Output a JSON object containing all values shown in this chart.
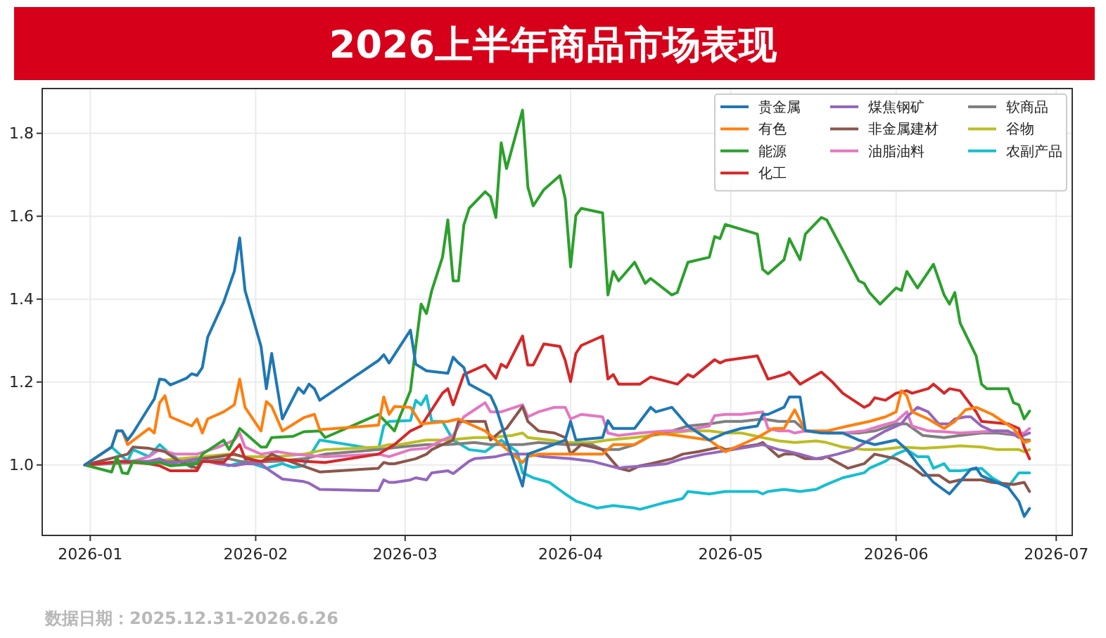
{
  "chart_data": {
    "type": "line",
    "title": "2026上半年商品市场表现",
    "annotations": [
      "数据日期：2025.12.31-2026.6.26"
    ],
    "xlim": [
      "2025-12-23",
      "2026-07-04"
    ],
    "ylim": [
      0.83,
      1.908
    ],
    "xticks": [
      {
        "value": "2026-01",
        "label": "2026-01"
      },
      {
        "value": "2026-02",
        "label": "2026-02"
      },
      {
        "value": "2026-03",
        "label": "2026-03"
      },
      {
        "value": "2026-04",
        "label": "2026-04"
      },
      {
        "value": "2026-05",
        "label": "2026-05"
      },
      {
        "value": "2026-06",
        "label": "2026-06"
      },
      {
        "value": "2026-07",
        "label": "2026-07"
      }
    ],
    "yticks": [
      {
        "value": 1,
        "label": "1.0"
      },
      {
        "value": 1.2,
        "label": "1.2"
      },
      {
        "value": 1.4,
        "label": "1.4"
      },
      {
        "value": 1.6,
        "label": "1.6"
      },
      {
        "value": 1.8,
        "label": "1.8"
      }
    ],
    "grid": true,
    "legend": "top right",
    "series": [
      {
        "name": "贵金属",
        "color": "#1f77b4",
        "x": [
          "2025-12-31",
          "2026-01-05",
          "2026-01-06",
          "2026-01-07",
          "2026-01-08",
          "2026-01-09",
          "2026-01-12",
          "2026-01-13",
          "2026-01-14",
          "2026-01-15",
          "2026-01-16",
          "2026-01-19",
          "2026-01-20",
          "2026-01-21",
          "2026-01-22",
          "2026-01-23",
          "2026-01-26",
          "2026-01-28",
          "2026-01-29",
          "2026-01-30",
          "2026-02-02",
          "2026-02-03",
          "2026-02-04",
          "2026-02-06",
          "2026-02-09",
          "2026-02-10",
          "2026-02-11",
          "2026-02-12",
          "2026-02-13",
          "2026-02-24",
          "2026-02-25",
          "2026-02-26",
          "2026-03-02",
          "2026-03-03",
          "2026-03-05",
          "2026-03-09",
          "2026-03-10",
          "2026-03-11",
          "2026-03-12",
          "2026-03-13",
          "2026-03-17",
          "2026-03-18",
          "2026-03-20",
          "2026-03-23",
          "2026-03-24",
          "2026-03-27",
          "2026-03-31",
          "2026-04-01",
          "2026-04-02",
          "2026-04-07",
          "2026-04-08",
          "2026-04-09",
          "2026-04-13",
          "2026-04-16",
          "2026-04-17",
          "2026-04-20",
          "2026-04-23",
          "2026-04-27",
          "2026-04-30",
          "2026-05-03",
          "2026-05-06",
          "2026-05-07",
          "2026-05-08",
          "2026-05-11",
          "2026-05-12",
          "2026-05-14",
          "2026-05-15",
          "2026-05-18",
          "2026-05-22",
          "2026-05-25",
          "2026-05-28",
          "2026-06-01",
          "2026-06-03",
          "2026-06-05",
          "2026-06-08",
          "2026-06-11",
          "2026-06-15",
          "2026-06-16",
          "2026-06-17",
          "2026-06-22",
          "2026-06-24",
          "2026-06-25",
          "2026-06-26"
        ],
        "values": [
          1,
          1.043,
          1.082,
          1.082,
          1.06,
          1.077,
          1.139,
          1.159,
          1.207,
          1.205,
          1.193,
          1.209,
          1.22,
          1.216,
          1.235,
          1.308,
          1.393,
          1.467,
          1.548,
          1.421,
          1.286,
          1.184,
          1.269,
          1.111,
          1.186,
          1.173,
          1.195,
          1.184,
          1.156,
          1.252,
          1.266,
          1.246,
          1.325,
          1.243,
          1.227,
          1.221,
          1.26,
          1.246,
          1.235,
          1.195,
          1.167,
          1.139,
          1.06,
          0.949,
          1.026,
          1.04,
          1.06,
          1.105,
          1.06,
          1.066,
          1.107,
          1.088,
          1.088,
          1.139,
          1.128,
          1.139,
          1.094,
          1.06,
          1.077,
          1.088,
          1.094,
          1.122,
          1.122,
          1.139,
          1.164,
          1.164,
          1.083,
          1.077,
          1.077,
          1.06,
          1.049,
          1.06,
          1.037,
          1.003,
          0.958,
          0.93,
          0.99,
          0.993,
          0.974,
          0.946,
          0.912,
          0.876,
          0.895
        ]
      },
      {
        "name": "有色",
        "color": "#ff7f0e",
        "x": [
          "2025-12-31",
          "2026-01-05",
          "2026-01-06",
          "2026-01-07",
          "2026-01-08",
          "2026-01-12",
          "2026-01-13",
          "2026-01-14",
          "2026-01-15",
          "2026-01-16",
          "2026-01-20",
          "2026-01-21",
          "2026-01-22",
          "2026-01-23",
          "2026-01-26",
          "2026-01-28",
          "2026-01-29",
          "2026-01-30",
          "2026-02-02",
          "2026-02-03",
          "2026-02-04",
          "2026-02-06",
          "2026-02-10",
          "2026-02-12",
          "2026-02-13",
          "2026-02-24",
          "2026-02-25",
          "2026-02-26",
          "2026-02-27",
          "2026-03-02",
          "2026-03-04",
          "2026-03-09",
          "2026-03-11",
          "2026-03-13",
          "2026-03-16",
          "2026-03-19",
          "2026-03-23",
          "2026-03-24",
          "2026-03-26",
          "2026-03-31",
          "2026-04-07",
          "2026-04-09",
          "2026-04-13",
          "2026-04-17",
          "2026-04-21",
          "2026-04-27",
          "2026-04-30",
          "2026-05-03",
          "2026-05-06",
          "2026-05-09",
          "2026-05-11",
          "2026-05-13",
          "2026-05-15",
          "2026-05-19",
          "2026-05-23",
          "2026-05-27",
          "2026-05-30",
          "2026-06-01",
          "2026-06-02",
          "2026-06-03",
          "2026-06-04",
          "2026-06-07",
          "2026-06-10",
          "2026-06-12",
          "2026-06-14",
          "2026-06-16",
          "2026-06-19",
          "2026-06-23",
          "2026-06-25",
          "2026-06-26"
        ],
        "values": [
          1,
          1.043,
          1.082,
          1.082,
          1.049,
          1.088,
          1.077,
          1.15,
          1.167,
          1.116,
          1.094,
          1.111,
          1.077,
          1.111,
          1.128,
          1.145,
          1.207,
          1.139,
          1.082,
          1.153,
          1.141,
          1.082,
          1.114,
          1.122,
          1.085,
          1.096,
          1.164,
          1.122,
          1.141,
          1.139,
          1.099,
          1.105,
          1.111,
          1.099,
          1.082,
          1.049,
          1.006,
          1.02,
          1.026,
          1.026,
          1.026,
          1.049,
          1.049,
          1.077,
          1.071,
          1.06,
          1.032,
          1.049,
          1.066,
          1.088,
          1.088,
          1.133,
          1.082,
          1.082,
          1.094,
          1.105,
          1.116,
          1.128,
          1.179,
          1.167,
          1.128,
          1.111,
          1.088,
          1.105,
          1.133,
          1.139,
          1.122,
          1.088,
          1.054,
          1.058
        ]
      },
      {
        "name": "能源",
        "color": "#2ca02c",
        "x": [
          "2025-12-31",
          "2026-01-05",
          "2026-01-06",
          "2026-01-07",
          "2026-01-08",
          "2026-01-09",
          "2026-01-12",
          "2026-01-14",
          "2026-01-16",
          "2026-01-21",
          "2026-01-22",
          "2026-01-26",
          "2026-01-27",
          "2026-01-29",
          "2026-02-02",
          "2026-02-03",
          "2026-02-04",
          "2026-02-08",
          "2026-02-10",
          "2026-02-13",
          "2026-02-14",
          "2026-02-24",
          "2026-02-26",
          "2026-02-27",
          "2026-02-28",
          "2026-03-02",
          "2026-03-03",
          "2026-03-04",
          "2026-03-05",
          "2026-03-06",
          "2026-03-08",
          "2026-03-09",
          "2026-03-10",
          "2026-03-11",
          "2026-03-12",
          "2026-03-13",
          "2026-03-16",
          "2026-03-17",
          "2026-03-18",
          "2026-03-19",
          "2026-03-20",
          "2026-03-23",
          "2026-03-24",
          "2026-03-25",
          "2026-03-27",
          "2026-03-30",
          "2026-03-31",
          "2026-04-01",
          "2026-04-02",
          "2026-04-03",
          "2026-04-07",
          "2026-04-08",
          "2026-04-09",
          "2026-04-10",
          "2026-04-13",
          "2026-04-15",
          "2026-04-16",
          "2026-04-20",
          "2026-04-21",
          "2026-04-23",
          "2026-04-27",
          "2026-04-28",
          "2026-04-29",
          "2026-04-30",
          "2026-05-06",
          "2026-05-07",
          "2026-05-08",
          "2026-05-11",
          "2026-05-12",
          "2026-05-14",
          "2026-05-15",
          "2026-05-18",
          "2026-05-19",
          "2026-05-22",
          "2026-05-25",
          "2026-05-26",
          "2026-05-27",
          "2026-05-29",
          "2026-06-01",
          "2026-06-02",
          "2026-06-03",
          "2026-06-05",
          "2026-06-08",
          "2026-06-10",
          "2026-06-11",
          "2026-06-12",
          "2026-06-13",
          "2026-06-16",
          "2026-06-17",
          "2026-06-18",
          "2026-06-22",
          "2026-06-23",
          "2026-06-24",
          "2026-06-25",
          "2026-06-26"
        ],
        "values": [
          1,
          0.983,
          1.02,
          0.981,
          0.979,
          1.009,
          1.003,
          1.006,
          0.998,
          1.003,
          1.026,
          1.06,
          1.037,
          1.088,
          1.043,
          1.043,
          1.066,
          1.069,
          1.08,
          1.082,
          1.066,
          1.122,
          1.096,
          1.082,
          1.116,
          1.179,
          1.286,
          1.388,
          1.365,
          1.421,
          1.501,
          1.591,
          1.444,
          1.444,
          1.579,
          1.619,
          1.659,
          1.647,
          1.597,
          1.777,
          1.715,
          1.856,
          1.67,
          1.625,
          1.664,
          1.698,
          1.642,
          1.478,
          1.602,
          1.619,
          1.608,
          1.41,
          1.467,
          1.444,
          1.489,
          1.438,
          1.45,
          1.41,
          1.416,
          1.489,
          1.501,
          1.551,
          1.546,
          1.58,
          1.557,
          1.472,
          1.461,
          1.495,
          1.546,
          1.495,
          1.557,
          1.597,
          1.591,
          1.518,
          1.444,
          1.438,
          1.416,
          1.388,
          1.427,
          1.421,
          1.467,
          1.427,
          1.484,
          1.41,
          1.388,
          1.416,
          1.342,
          1.263,
          1.195,
          1.184,
          1.184,
          1.15,
          1.145,
          1.111,
          1.13
        ]
      },
      {
        "name": "化工",
        "color": "#d62728",
        "x": [
          "2025-12-31",
          "2026-01-07",
          "2026-01-12",
          "2026-01-14",
          "2026-01-16",
          "2026-01-19",
          "2026-01-21",
          "2026-01-22",
          "2026-01-26",
          "2026-01-27",
          "2026-01-29",
          "2026-01-30",
          "2026-02-02",
          "2026-02-04",
          "2026-02-10",
          "2026-02-14",
          "2026-02-24",
          "2026-02-27",
          "2026-03-02",
          "2026-03-04",
          "2026-03-08",
          "2026-03-09",
          "2026-03-10",
          "2026-03-12",
          "2026-03-16",
          "2026-03-18",
          "2026-03-19",
          "2026-03-20",
          "2026-03-23",
          "2026-03-24",
          "2026-03-25",
          "2026-03-27",
          "2026-03-30",
          "2026-03-31",
          "2026-04-01",
          "2026-04-02",
          "2026-04-03",
          "2026-04-07",
          "2026-04-08",
          "2026-04-09",
          "2026-04-10",
          "2026-04-14",
          "2026-04-16",
          "2026-04-21",
          "2026-04-23",
          "2026-04-24",
          "2026-04-28",
          "2026-04-29",
          "2026-04-30",
          "2026-05-06",
          "2026-05-08",
          "2026-05-11",
          "2026-05-12",
          "2026-05-14",
          "2026-05-18",
          "2026-05-20",
          "2026-05-22",
          "2026-05-26",
          "2026-05-27",
          "2026-05-28",
          "2026-05-30",
          "2026-06-01",
          "2026-06-03",
          "2026-06-04",
          "2026-06-07",
          "2026-06-08",
          "2026-06-10",
          "2026-06-11",
          "2026-06-13",
          "2026-06-16",
          "2026-06-17",
          "2026-06-22",
          "2026-06-24",
          "2026-06-25",
          "2026-06-26"
        ],
        "values": [
          1,
          1.009,
          1.003,
          0.998,
          0.986,
          0.986,
          0.986,
          1.009,
          1.006,
          1.02,
          1.049,
          1.015,
          1.009,
          1.015,
          1.009,
          1.006,
          1.026,
          1.049,
          1.082,
          1.094,
          1.173,
          1.184,
          1.145,
          1.218,
          1.241,
          1.209,
          1.243,
          1.235,
          1.311,
          1.241,
          1.241,
          1.292,
          1.286,
          1.252,
          1.201,
          1.269,
          1.288,
          1.311,
          1.207,
          1.218,
          1.195,
          1.195,
          1.212,
          1.195,
          1.218,
          1.212,
          1.254,
          1.246,
          1.252,
          1.263,
          1.207,
          1.218,
          1.224,
          1.195,
          1.224,
          1.201,
          1.173,
          1.139,
          1.145,
          1.162,
          1.156,
          1.173,
          1.179,
          1.173,
          1.184,
          1.195,
          1.173,
          1.184,
          1.179,
          1.128,
          1.105,
          1.099,
          1.088,
          1.043,
          1.015
        ]
      },
      {
        "name": "煤焦钢矿",
        "color": "#9467bd",
        "x": [
          "2025-12-31",
          "2026-01-08",
          "2026-01-12",
          "2026-01-14",
          "2026-01-16",
          "2026-01-21",
          "2026-01-25",
          "2026-01-28",
          "2026-01-30",
          "2026-02-02",
          "2026-02-03",
          "2026-02-06",
          "2026-02-10",
          "2026-02-11",
          "2026-02-13",
          "2026-02-24",
          "2026-02-25",
          "2026-02-26",
          "2026-02-27",
          "2026-03-02",
          "2026-03-03",
          "2026-03-05",
          "2026-03-06",
          "2026-03-09",
          "2026-03-10",
          "2026-03-13",
          "2026-03-14",
          "2026-03-18",
          "2026-03-20",
          "2026-03-24",
          "2026-03-27",
          "2026-04-01",
          "2026-04-05",
          "2026-04-10",
          "2026-04-11",
          "2026-04-15",
          "2026-04-19",
          "2026-04-22",
          "2026-04-26",
          "2026-04-29",
          "2026-05-07",
          "2026-05-10",
          "2026-05-12",
          "2026-05-14",
          "2026-05-17",
          "2026-05-19",
          "2026-05-21",
          "2026-05-24",
          "2026-05-27",
          "2026-05-30",
          "2026-06-02",
          "2026-06-03",
          "2026-06-05",
          "2026-06-07",
          "2026-06-09",
          "2026-06-11",
          "2026-06-12",
          "2026-06-14",
          "2026-06-15",
          "2026-06-17",
          "2026-06-19",
          "2026-06-22",
          "2026-06-24",
          "2026-06-26"
        ],
        "values": [
          1,
          1.009,
          1.009,
          1.015,
          1.003,
          1.015,
          1.003,
          0.998,
          1.003,
          1.003,
          0.992,
          0.966,
          0.96,
          0.956,
          0.941,
          0.938,
          0.964,
          0.958,
          0.958,
          0.964,
          0.969,
          0.964,
          0.981,
          0.986,
          0.979,
          1.009,
          1.015,
          1.02,
          1.026,
          1.026,
          1.02,
          1.015,
          1.009,
          0.992,
          0.994,
          0.998,
          1.003,
          1.015,
          1.026,
          1.032,
          1.049,
          1.037,
          1.032,
          1.026,
          1.015,
          1.02,
          1.026,
          1.037,
          1.06,
          1.082,
          1.099,
          1.116,
          1.139,
          1.128,
          1.099,
          1.099,
          1.111,
          1.116,
          1.116,
          1.094,
          1.082,
          1.082,
          1.066,
          1.077
        ]
      },
      {
        "name": "非金属建材",
        "color": "#8c564b",
        "x": [
          "2025-12-31",
          "2026-01-08",
          "2026-01-09",
          "2026-01-12",
          "2026-01-15",
          "2026-01-18",
          "2026-01-21",
          "2026-01-22",
          "2026-01-25",
          "2026-01-28",
          "2026-01-31",
          "2026-02-02",
          "2026-02-04",
          "2026-02-06",
          "2026-02-13",
          "2026-02-24",
          "2026-02-25",
          "2026-02-26",
          "2026-02-27",
          "2026-03-03",
          "2026-03-05",
          "2026-03-06",
          "2026-03-08",
          "2026-03-10",
          "2026-03-11",
          "2026-03-16",
          "2026-03-17",
          "2026-03-19",
          "2026-03-20",
          "2026-03-23",
          "2026-03-24",
          "2026-03-26",
          "2026-03-29",
          "2026-03-31",
          "2026-04-01",
          "2026-04-03",
          "2026-04-07",
          "2026-04-10",
          "2026-04-12",
          "2026-04-14",
          "2026-04-16",
          "2026-04-20",
          "2026-04-22",
          "2026-04-25",
          "2026-04-29",
          "2026-04-30",
          "2026-05-06",
          "2026-05-07",
          "2026-05-10",
          "2026-05-11",
          "2026-05-13",
          "2026-05-15",
          "2026-05-18",
          "2026-05-19",
          "2026-05-23",
          "2026-05-26",
          "2026-05-28",
          "2026-06-01",
          "2026-06-04",
          "2026-06-06",
          "2026-06-09",
          "2026-06-11",
          "2026-06-13",
          "2026-06-17",
          "2026-06-19",
          "2026-06-23",
          "2026-06-25",
          "2026-06-26"
        ],
        "values": [
          1,
          1.026,
          1.043,
          1.04,
          1.032,
          1.006,
          0.992,
          1.015,
          1.02,
          1.026,
          1.015,
          1.006,
          1.026,
          1.015,
          0.983,
          0.992,
          1.006,
          1.003,
          1.003,
          1.015,
          1.026,
          1.037,
          1.049,
          1.06,
          1.105,
          1.105,
          1.06,
          1.082,
          1.088,
          1.141,
          1.105,
          1.082,
          1.077,
          1.066,
          1.026,
          1.049,
          1.037,
          0.992,
          0.986,
          0.998,
          1.003,
          1.015,
          1.026,
          1.032,
          1.043,
          1.037,
          1.049,
          1.054,
          1.02,
          1.026,
          1.026,
          1.015,
          1.015,
          1.02,
          0.992,
          1.003,
          1.026,
          1.015,
          0.994,
          0.975,
          0.975,
          0.958,
          0.964,
          0.964,
          0.958,
          0.953,
          0.958,
          0.936
        ]
      },
      {
        "name": "油脂油料",
        "color": "#e377c2",
        "x": [
          "2025-12-31",
          "2026-01-09",
          "2026-01-12",
          "2026-01-14",
          "2026-01-17",
          "2026-01-21",
          "2026-01-25",
          "2026-01-28",
          "2026-01-29",
          "2026-01-30",
          "2026-02-02",
          "2026-02-05",
          "2026-02-08",
          "2026-02-14",
          "2026-02-24",
          "2026-02-26",
          "2026-03-02",
          "2026-03-05",
          "2026-03-08",
          "2026-03-10",
          "2026-03-12",
          "2026-03-14",
          "2026-03-16",
          "2026-03-17",
          "2026-03-19",
          "2026-03-23",
          "2026-03-24",
          "2026-03-26",
          "2026-03-29",
          "2026-03-31",
          "2026-04-01",
          "2026-04-03",
          "2026-04-07",
          "2026-04-08",
          "2026-04-10",
          "2026-04-14",
          "2026-04-19",
          "2026-04-22",
          "2026-04-27",
          "2026-04-28",
          "2026-04-30",
          "2026-05-03",
          "2026-05-07",
          "2026-05-08",
          "2026-05-10",
          "2026-05-12",
          "2026-05-13",
          "2026-05-15",
          "2026-05-19",
          "2026-05-22",
          "2026-05-26",
          "2026-05-29",
          "2026-06-01",
          "2026-06-03",
          "2026-06-04",
          "2026-06-07",
          "2026-06-10",
          "2026-06-13",
          "2026-06-17",
          "2026-06-20",
          "2026-06-23",
          "2026-06-25",
          "2026-06-26"
        ],
        "values": [
          1,
          1.009,
          1.02,
          1.037,
          1.026,
          1.026,
          1.043,
          1.06,
          1.077,
          1.043,
          1.026,
          1.032,
          1.026,
          1.02,
          1.026,
          1.02,
          1.037,
          1.04,
          1.06,
          1.071,
          1.116,
          1.133,
          1.15,
          1.128,
          1.128,
          1.145,
          1.116,
          1.128,
          1.139,
          1.139,
          1.111,
          1.122,
          1.116,
          1.077,
          1.071,
          1.077,
          1.082,
          1.082,
          1.094,
          1.119,
          1.122,
          1.122,
          1.128,
          1.088,
          1.082,
          1.082,
          1.077,
          1.082,
          1.077,
          1.077,
          1.082,
          1.094,
          1.105,
          1.128,
          1.094,
          1.082,
          1.08,
          1.077,
          1.08,
          1.082,
          1.077,
          1.077,
          1.088
        ]
      },
      {
        "name": "软商品",
        "color": "#7f7f7f",
        "x": [
          "2025-12-31",
          "2026-01-09",
          "2026-01-18",
          "2026-01-21",
          "2026-01-27",
          "2026-01-30",
          "2026-02-05",
          "2026-02-10",
          "2026-02-14",
          "2026-02-24",
          "2026-02-26",
          "2026-02-28",
          "2026-03-05",
          "2026-03-09",
          "2026-03-14",
          "2026-03-17",
          "2026-03-23",
          "2026-03-26",
          "2026-03-31",
          "2026-04-05",
          "2026-04-07",
          "2026-04-10",
          "2026-04-13",
          "2026-04-16",
          "2026-04-20",
          "2026-04-23",
          "2026-04-27",
          "2026-04-30",
          "2026-05-03",
          "2026-05-07",
          "2026-05-10",
          "2026-05-13",
          "2026-05-15",
          "2026-05-19",
          "2026-05-25",
          "2026-05-28",
          "2026-06-01",
          "2026-06-03",
          "2026-06-06",
          "2026-06-10",
          "2026-06-13",
          "2026-06-17",
          "2026-06-20",
          "2026-06-24",
          "2026-06-25",
          "2026-06-26"
        ],
        "values": [
          1,
          1.006,
          1.009,
          1.006,
          1.015,
          1.006,
          1.009,
          1.015,
          1.026,
          1.037,
          1.04,
          1.043,
          1.049,
          1.049,
          1.054,
          1.049,
          1.049,
          1.054,
          1.049,
          1.049,
          1.037,
          1.037,
          1.049,
          1.071,
          1.082,
          1.094,
          1.099,
          1.105,
          1.105,
          1.111,
          1.105,
          1.105,
          1.082,
          1.077,
          1.077,
          1.082,
          1.099,
          1.099,
          1.071,
          1.066,
          1.071,
          1.077,
          1.077,
          1.071,
          1.06,
          1.06
        ]
      },
      {
        "name": "谷物",
        "color": "#bcbd22",
        "x": [
          "2025-12-31",
          "2026-01-09",
          "2026-01-18",
          "2026-01-22",
          "2026-01-27",
          "2026-01-30",
          "2026-02-05",
          "2026-02-10",
          "2026-02-14",
          "2026-02-24",
          "2026-02-26",
          "2026-02-28",
          "2026-03-05",
          "2026-03-09",
          "2026-03-14",
          "2026-03-17",
          "2026-03-21",
          "2026-03-23",
          "2026-03-24",
          "2026-03-28",
          "2026-03-31",
          "2026-04-05",
          "2026-04-08",
          "2026-04-13",
          "2026-04-16",
          "2026-04-20",
          "2026-04-23",
          "2026-04-27",
          "2026-04-30",
          "2026-05-03",
          "2026-05-07",
          "2026-05-10",
          "2026-05-13",
          "2026-05-17",
          "2026-05-19",
          "2026-05-22",
          "2026-05-26",
          "2026-05-29",
          "2026-06-02",
          "2026-06-06",
          "2026-06-10",
          "2026-06-13",
          "2026-06-17",
          "2026-06-20",
          "2026-06-24",
          "2026-06-25",
          "2026-06-26"
        ],
        "values": [
          1,
          1.006,
          1.015,
          1.02,
          1.026,
          1.02,
          1.02,
          1.026,
          1.037,
          1.043,
          1.049,
          1.049,
          1.06,
          1.06,
          1.066,
          1.066,
          1.071,
          1.077,
          1.066,
          1.06,
          1.054,
          1.054,
          1.06,
          1.066,
          1.071,
          1.077,
          1.082,
          1.082,
          1.077,
          1.077,
          1.066,
          1.058,
          1.054,
          1.058,
          1.054,
          1.043,
          1.037,
          1.037,
          1.043,
          1.04,
          1.043,
          1.046,
          1.043,
          1.037,
          1.037,
          1.032,
          1.037
        ]
      },
      {
        "name": "农副产品",
        "color": "#17becf",
        "x": [
          "2025-12-31",
          "2026-01-05",
          "2026-01-08",
          "2026-01-09",
          "2026-01-12",
          "2026-01-14",
          "2026-01-16",
          "2026-01-20",
          "2026-01-21",
          "2026-01-24",
          "2026-01-27",
          "2026-01-30",
          "2026-02-03",
          "2026-02-06",
          "2026-02-08",
          "2026-02-10",
          "2026-02-13",
          "2026-02-24",
          "2026-02-25",
          "2026-02-26",
          "2026-03-02",
          "2026-03-03",
          "2026-03-04",
          "2026-03-05",
          "2026-03-06",
          "2026-03-08",
          "2026-03-09",
          "2026-03-10",
          "2026-03-13",
          "2026-03-16",
          "2026-03-19",
          "2026-03-22",
          "2026-03-23",
          "2026-03-25",
          "2026-03-28",
          "2026-03-31",
          "2026-04-02",
          "2026-04-06",
          "2026-04-09",
          "2026-04-13",
          "2026-04-14",
          "2026-04-18",
          "2026-04-22",
          "2026-04-23",
          "2026-04-27",
          "2026-04-30",
          "2026-05-06",
          "2026-05-07",
          "2026-05-08",
          "2026-05-11",
          "2026-05-14",
          "2026-05-17",
          "2026-05-19",
          "2026-05-22",
          "2026-05-26",
          "2026-05-27",
          "2026-05-30",
          "2026-06-01",
          "2026-06-03",
          "2026-06-05",
          "2026-06-07",
          "2026-06-08",
          "2026-06-10",
          "2026-06-11",
          "2026-06-13",
          "2026-06-17",
          "2026-06-19",
          "2026-06-22",
          "2026-06-24",
          "2026-06-26"
        ],
        "values": [
          1,
          1.043,
          1.009,
          1.037,
          1.02,
          1.049,
          1.026,
          0.994,
          1.015,
          1.009,
          0.998,
          1.009,
          0.992,
          1.003,
          0.994,
          0.998,
          1.06,
          1.037,
          1.094,
          1.105,
          1.107,
          1.156,
          1.145,
          1.167,
          1.105,
          1.105,
          1.082,
          1.06,
          1.037,
          1.032,
          1.06,
          1.032,
          0.981,
          0.969,
          0.958,
          0.93,
          0.913,
          0.896,
          0.902,
          0.896,
          0.893,
          0.907,
          0.919,
          0.936,
          0.93,
          0.936,
          0.936,
          0.93,
          0.936,
          0.941,
          0.936,
          0.941,
          0.953,
          0.969,
          0.981,
          0.992,
          1.009,
          1.026,
          1.037,
          1.02,
          1.02,
          0.992,
          1.003,
          0.986,
          0.986,
          0.992,
          0.969,
          0.947,
          0.981,
          0.981
        ]
      }
    ]
  }
}
